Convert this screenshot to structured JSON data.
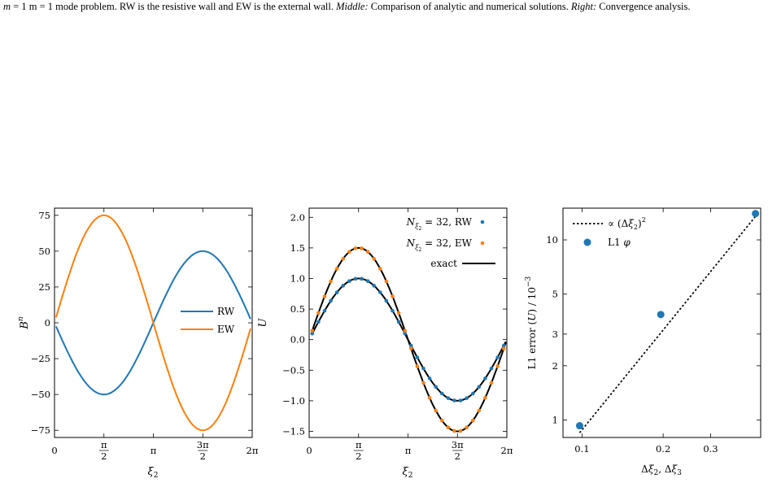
{
  "caption": {
    "part1": "m = 1 mode problem. RW is the resistive wall and EW is the external wall.",
    "middle_tag": "Middle:",
    "part2": "Comparison of analytic and numerical solutions.",
    "right_tag": "Right:",
    "part3": "Convergence analysis."
  },
  "colors": {
    "rw": "#1f77b4",
    "ew": "#ff7f0e",
    "exact": "#000000"
  },
  "chart_data": [
    {
      "type": "line",
      "xlabel": "ξ2",
      "ylabel": "B^n",
      "xlim": [
        0,
        6.2832
      ],
      "ylim": [
        -80,
        80
      ],
      "x_ticks": [
        "0",
        "π/2",
        "π",
        "3π/2",
        "2π"
      ],
      "y_ticks": [
        "75",
        "50",
        "25",
        "0",
        "−25",
        "−50",
        "−75"
      ],
      "legend": "center-right",
      "grid": false,
      "series": [
        {
          "name": "RW",
          "amplitude": -50,
          "function": "-50·sin(ξ2)",
          "x_start": 0.05,
          "x_end": 6.23
        },
        {
          "name": "EW",
          "amplitude": 75,
          "function": "75·sin(ξ2)",
          "x_start": 0.05,
          "x_end": 6.23
        }
      ]
    },
    {
      "type": "line",
      "xlabel": "ξ2",
      "ylabel": "U",
      "xlim": [
        0,
        6.2832
      ],
      "ylim": [
        -1.6,
        2.15
      ],
      "x_ticks": [
        "0",
        "π/2",
        "π",
        "3π/2",
        "2π"
      ],
      "y_ticks": [
        "2.0",
        "1.5",
        "1.0",
        "0.5",
        "0.0",
        "−0.5",
        "−1.0",
        "−1.5"
      ],
      "legend": "top-right",
      "grid": false,
      "series": [
        {
          "name": "N_ξ2 = 32, RW",
          "style": "points",
          "amplitude": 1.0,
          "n_points": 32
        },
        {
          "name": "N_ξ2 = 32, EW",
          "style": "points",
          "amplitude": 1.5,
          "n_points": 32
        },
        {
          "name": "exact",
          "style": "line",
          "amplitudes": [
            1.0,
            1.5
          ]
        }
      ]
    },
    {
      "type": "scatter",
      "xscale": "log",
      "yscale": "log",
      "xlabel": "Δξ2, Δξ3",
      "ylabel": "L1 error (U) / 10^−3",
      "xlim": [
        0.085,
        0.46
      ],
      "ylim": [
        0.8,
        15
      ],
      "x_ticks": [
        "0.1",
        "0.2",
        "0.3"
      ],
      "y_ticks": [
        "1",
        "2",
        "3",
        "5",
        "10"
      ],
      "legend": "top-left",
      "grid": false,
      "series": [
        {
          "name": "∝ (Δξ2)^2",
          "style": "dotted-line",
          "x": [
            0.098,
            0.44
          ],
          "y": [
            0.85,
            13.5
          ]
        },
        {
          "name": "L1 φ",
          "style": "points",
          "x": [
            0.098,
            0.196,
            0.44
          ],
          "y": [
            0.93,
            3.85,
            14.0
          ]
        }
      ]
    }
  ]
}
